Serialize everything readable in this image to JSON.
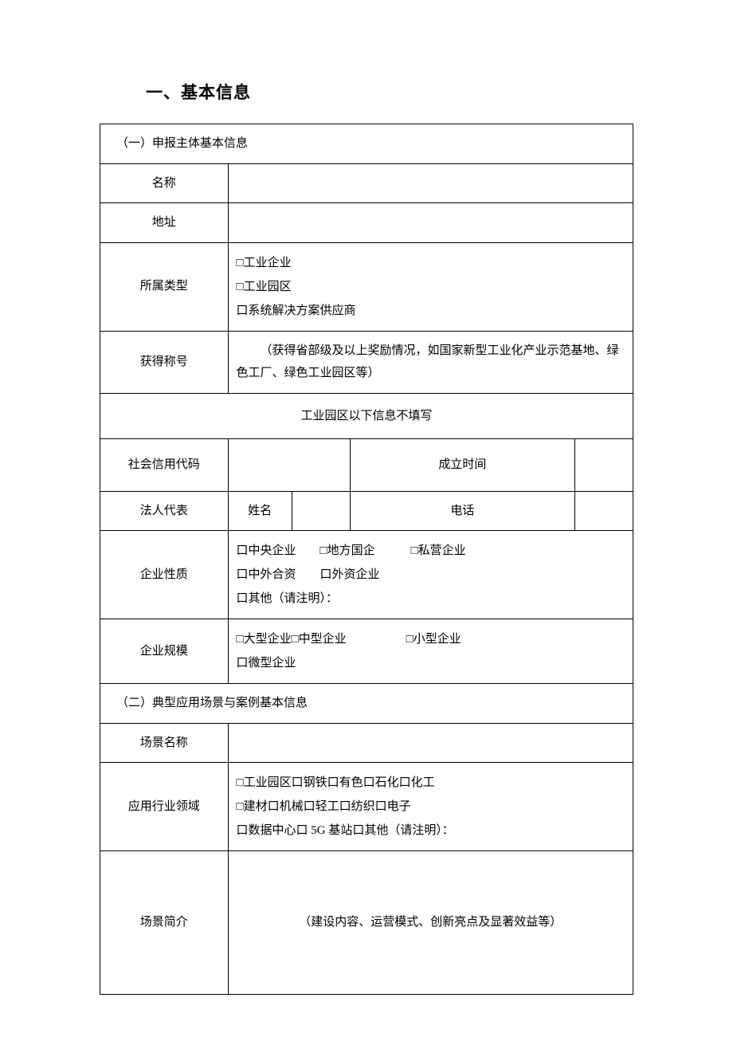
{
  "page_title": "一、基本信息",
  "section1": {
    "header": "（一）申报主体基本信息",
    "name_label": "名称",
    "address_label": "地址",
    "type_label": "所属类型",
    "type_options": "□工业企业\n□工业园区\n口系统解决方案供应商",
    "title_label": "获得称号",
    "title_desc": "（获得省部级及以上奖励情况，如国家新型工业化产业示范基地、绿色工厂、绿色工业园区等）",
    "note": "工业园区以下信息不填写",
    "credit_code_label": "社会信用代码",
    "establish_time_label": "成立时间",
    "legal_rep_label": "法人代表",
    "legal_name_label": "姓名",
    "legal_phone_label": "电话",
    "nature_label": "企业性质",
    "nature_options": "口中央企业　　□地方国企　　　□私营企业\n口中外合资　　口外资企业\n口其他（请注明）：",
    "scale_label": "企业规模",
    "scale_options": "□大型企业□中型企业　　　　　□小型企业\n口微型企业"
  },
  "section2": {
    "header": "（二）典型应用场景与案例基本信息",
    "scene_name_label": "场景名称",
    "industry_label": "应用行业领域",
    "industry_options": "□工业园区口钢铁口有色口石化口化工\n□建材口机械口轻工口纺织口电子\n口数据中心口 5G 基站口其他（请注明）：",
    "brief_label": "场景简介",
    "brief_desc": "（建设内容、运营模式、创新亮点及显著效益等）"
  }
}
